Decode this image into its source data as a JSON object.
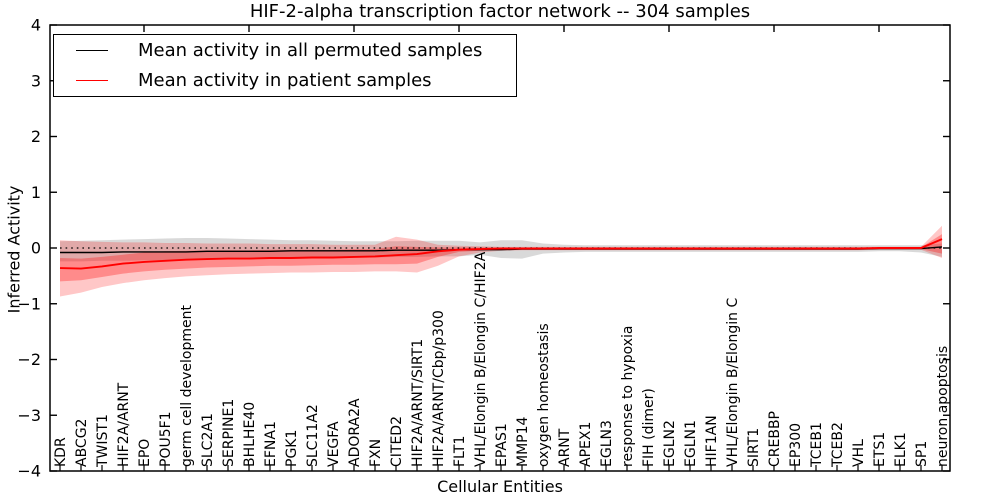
{
  "figure": {
    "title": "HIF-2-alpha transcription factor network -- 304 samples",
    "xlabel": "Cellular Entities",
    "ylabel": "Inferred Activity"
  },
  "legend": {
    "entries": [
      {
        "label": "Mean activity in all permuted samples",
        "color": "#000000"
      },
      {
        "label": "Mean activity in patient samples",
        "color": "#ff0000"
      }
    ]
  },
  "chart_data": {
    "type": "line",
    "title": "HIF-2-alpha transcription factor network -- 304 samples",
    "xlabel": "Cellular Entities",
    "ylabel": "Inferred Activity",
    "ylim": [
      -4,
      4
    ],
    "yticks": [
      4,
      3,
      2,
      1,
      0,
      -1,
      -2,
      -3,
      -4
    ],
    "grid": false,
    "legend_position": "upper left",
    "colors": {
      "permuted": "#000000",
      "patient": "#ff0000",
      "permuted_band": "#b4b4b4",
      "patient_band": "#ff0000"
    },
    "categories": [
      "KDR",
      "ABCG2",
      "TWIST1",
      "HIF2A/ARNT",
      "EPO",
      "POU5F1",
      "germ cell development",
      "SLC2A1",
      "SERPINE1",
      "BHLHE40",
      "EFNA1",
      "PGK1",
      "SLC11A2",
      "VEGFA",
      "ADORA2A",
      "FXN",
      "CITED2",
      "HIF2A/ARNT/SIRT1",
      "HIF2A/ARNT/Cbp/p300",
      "FLT1",
      "VHL/Elongin B/Elongin C/HIF2A",
      "EPAS1",
      "MMP14",
      "oxygen homeostasis",
      "ARNT",
      "APEX1",
      "EGLN3",
      "response to hypoxia",
      "FIH (dimer)",
      "EGLN2",
      "EGLN1",
      "HIF1AN",
      "VHL/Elongin B/Elongin C",
      "SIRT1",
      "CREBBP",
      "EP300",
      "TCEB1",
      "TCEB2",
      "VHL",
      "ETS1",
      "ELK1",
      "SP1",
      "neuron apoptosis"
    ],
    "series": [
      {
        "name": "Mean activity in all permuted samples",
        "type": "line",
        "color": "#000000",
        "values": [
          -0.08,
          -0.08,
          -0.08,
          -0.07,
          -0.07,
          -0.07,
          -0.07,
          -0.06,
          -0.06,
          -0.06,
          -0.06,
          -0.05,
          -0.05,
          -0.05,
          -0.05,
          -0.05,
          -0.04,
          -0.04,
          -0.04,
          -0.03,
          -0.03,
          -0.03,
          -0.02,
          -0.02,
          -0.02,
          -0.02,
          -0.02,
          -0.02,
          -0.02,
          -0.02,
          -0.02,
          -0.02,
          -0.02,
          -0.02,
          -0.02,
          -0.02,
          -0.02,
          -0.02,
          -0.02,
          -0.01,
          -0.01,
          -0.01,
          0.02
        ]
      },
      {
        "name": "Mean activity in patient samples",
        "type": "line",
        "color": "#ff0000",
        "values": [
          -0.36,
          -0.37,
          -0.33,
          -0.28,
          -0.25,
          -0.23,
          -0.21,
          -0.2,
          -0.19,
          -0.19,
          -0.18,
          -0.18,
          -0.17,
          -0.17,
          -0.16,
          -0.15,
          -0.13,
          -0.11,
          -0.06,
          -0.03,
          -0.02,
          -0.01,
          -0.01,
          -0.01,
          -0.01,
          -0.01,
          -0.01,
          -0.01,
          -0.01,
          -0.01,
          -0.01,
          -0.01,
          -0.01,
          -0.01,
          -0.01,
          -0.01,
          -0.01,
          -0.01,
          -0.01,
          0.0,
          0.0,
          0.0,
          0.16
        ]
      },
      {
        "name": "Permuted samples activity range",
        "type": "band",
        "color": "#b4b4b4",
        "opacity": 0.5,
        "hi": [
          0.12,
          0.13,
          0.14,
          0.15,
          0.16,
          0.17,
          0.18,
          0.18,
          0.17,
          0.16,
          0.15,
          0.14,
          0.14,
          0.13,
          0.12,
          0.12,
          0.12,
          0.13,
          0.13,
          0.13,
          0.1,
          0.14,
          0.14,
          0.08,
          0.06,
          0.05,
          0.05,
          0.05,
          0.05,
          0.05,
          0.05,
          0.05,
          0.05,
          0.05,
          0.05,
          0.05,
          0.05,
          0.05,
          0.05,
          0.05,
          0.05,
          0.05,
          0.08
        ],
        "lo": [
          -0.24,
          -0.24,
          -0.23,
          -0.23,
          -0.22,
          -0.22,
          -0.21,
          -0.21,
          -0.2,
          -0.2,
          -0.19,
          -0.19,
          -0.18,
          -0.18,
          -0.17,
          -0.17,
          -0.16,
          -0.16,
          -0.15,
          -0.15,
          -0.12,
          -0.18,
          -0.19,
          -0.1,
          -0.08,
          -0.07,
          -0.07,
          -0.07,
          -0.07,
          -0.07,
          -0.07,
          -0.07,
          -0.07,
          -0.07,
          -0.07,
          -0.07,
          -0.07,
          -0.07,
          -0.07,
          -0.06,
          -0.06,
          -0.08,
          -0.16
        ]
      },
      {
        "name": "Patient samples activity range (outer)",
        "type": "band",
        "color": "#ff0000",
        "opacity": 0.22,
        "hi": [
          0.14,
          0.12,
          0.11,
          0.1,
          0.1,
          0.09,
          0.09,
          0.08,
          0.08,
          0.08,
          0.07,
          0.07,
          0.07,
          0.06,
          0.06,
          0.06,
          0.2,
          0.15,
          0.06,
          0.04,
          0.03,
          0.02,
          0.02,
          0.02,
          0.02,
          0.02,
          0.02,
          0.02,
          0.02,
          0.02,
          0.02,
          0.02,
          0.02,
          0.02,
          0.02,
          0.02,
          0.02,
          0.02,
          0.02,
          0.02,
          0.02,
          0.02,
          0.4
        ],
        "lo": [
          -0.87,
          -0.8,
          -0.7,
          -0.63,
          -0.58,
          -0.54,
          -0.51,
          -0.49,
          -0.47,
          -0.46,
          -0.45,
          -0.44,
          -0.44,
          -0.43,
          -0.43,
          -0.42,
          -0.42,
          -0.44,
          -0.32,
          -0.15,
          -0.08,
          -0.05,
          -0.04,
          -0.04,
          -0.04,
          -0.04,
          -0.04,
          -0.04,
          -0.04,
          -0.04,
          -0.04,
          -0.04,
          -0.04,
          -0.04,
          -0.04,
          -0.04,
          -0.04,
          -0.04,
          -0.04,
          -0.03,
          -0.03,
          -0.03,
          -0.18
        ]
      },
      {
        "name": "Patient samples activity range (inner)",
        "type": "band",
        "color": "#ff0000",
        "opacity": 0.3,
        "hi": [
          -0.18,
          -0.19,
          -0.16,
          -0.12,
          -0.08,
          -0.06,
          -0.05,
          -0.04,
          -0.04,
          -0.04,
          -0.03,
          -0.03,
          -0.03,
          -0.03,
          -0.02,
          -0.02,
          0.03,
          0.02,
          0.01,
          0.01,
          0.01,
          0.01,
          0.01,
          0.01,
          0.01,
          0.01,
          0.01,
          0.01,
          0.01,
          0.01,
          0.01,
          0.01,
          0.01,
          0.01,
          0.01,
          0.01,
          0.01,
          0.01,
          0.01,
          0.01,
          0.01,
          0.01,
          0.25
        ],
        "lo": [
          -0.6,
          -0.58,
          -0.52,
          -0.46,
          -0.42,
          -0.39,
          -0.37,
          -0.35,
          -0.34,
          -0.33,
          -0.32,
          -0.32,
          -0.31,
          -0.3,
          -0.3,
          -0.29,
          -0.29,
          -0.28,
          -0.16,
          -0.07,
          -0.05,
          -0.03,
          -0.03,
          -0.03,
          -0.03,
          -0.03,
          -0.03,
          -0.03,
          -0.03,
          -0.03,
          -0.03,
          -0.03,
          -0.03,
          -0.03,
          -0.03,
          -0.03,
          -0.03,
          -0.03,
          -0.03,
          -0.02,
          -0.02,
          -0.02,
          -0.1
        ]
      }
    ],
    "zero_line": {
      "style": "dotted",
      "color": "#000000",
      "y": 0
    },
    "top_tick_indices": [
      4,
      9,
      14,
      19,
      24,
      29,
      34,
      39
    ]
  }
}
